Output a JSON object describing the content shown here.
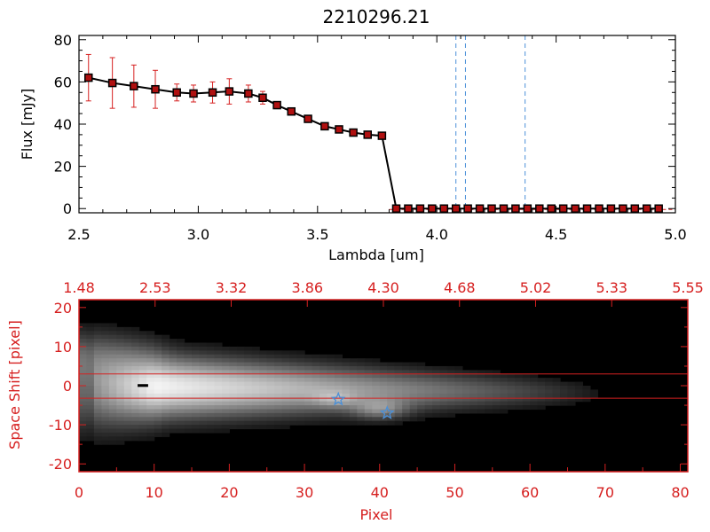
{
  "chart_data": [
    {
      "type": "line",
      "title": "2210296.21",
      "xlabel": "Lambda [um]",
      "ylabel": "Flux [mJy]",
      "xlim": [
        2.5,
        5.0
      ],
      "ylim": [
        -2,
        82
      ],
      "xticks": [
        "2.5",
        "3.0",
        "3.5",
        "4.0",
        "4.5",
        "5.0"
      ],
      "yticks": [
        "0",
        "20",
        "40",
        "60",
        "80"
      ],
      "line_color": "#000000",
      "marker_color": "#b01010",
      "errorbar_color": "#d62020",
      "vline_color": "#4a90d9",
      "vlines": [
        4.08,
        4.12,
        4.37
      ],
      "baseline_color": "#d62020",
      "series": [
        {
          "x": [
            2.54,
            2.64,
            2.73,
            2.82,
            2.91,
            2.98,
            3.06,
            3.13,
            3.21,
            3.27,
            3.33,
            3.39,
            3.46,
            3.53,
            3.59,
            3.65,
            3.71,
            3.77,
            3.83,
            3.88,
            3.93,
            3.98,
            4.03,
            4.08,
            4.13,
            4.18,
            4.23,
            4.28,
            4.33,
            4.38,
            4.43,
            4.48,
            4.53,
            4.58,
            4.63,
            4.68,
            4.73,
            4.78,
            4.83,
            4.88,
            4.93
          ],
          "y": [
            62,
            59.5,
            58,
            56.5,
            55,
            54.5,
            55,
            55.5,
            54.5,
            52.5,
            49,
            46,
            42.5,
            39,
            37.5,
            36,
            35,
            34.5,
            0,
            0,
            0,
            0,
            0,
            0,
            0,
            0,
            0,
            0,
            0,
            0,
            0,
            0,
            0,
            0,
            0,
            0,
            0,
            0,
            0,
            0,
            0
          ],
          "yerr": [
            11,
            12,
            10,
            9,
            4,
            4,
            5,
            6,
            4,
            3,
            0,
            0,
            0,
            0,
            0,
            0,
            0,
            0,
            0,
            0,
            0,
            0,
            0,
            0,
            0,
            0,
            0,
            0,
            0,
            0,
            0,
            0,
            0,
            0,
            0,
            0,
            0,
            0,
            0,
            0,
            0
          ]
        }
      ]
    },
    {
      "type": "heatmap",
      "xlabel": "Pixel",
      "ylabel": "Space Shift [pixel]",
      "xlim": [
        0,
        81
      ],
      "ylim": [
        -22,
        22
      ],
      "xticks": [
        "0",
        "10",
        "20",
        "30",
        "40",
        "50",
        "60",
        "70",
        "80"
      ],
      "yticks": [
        "-20",
        "-10",
        "0",
        "10",
        "20"
      ],
      "top_xticks": [
        "1.48",
        "2.53",
        "3.32",
        "3.86",
        "4.30",
        "4.68",
        "5.02",
        "5.33",
        "5.55"
      ],
      "hlines": [
        3,
        -3.2
      ],
      "hline_color": "#d62020",
      "axis_color": "#d62020",
      "star_color": "#4a90d9",
      "stars": [
        {
          "x": 34.5,
          "y": -3.5
        },
        {
          "x": 41,
          "y": -7
        }
      ],
      "trace": {
        "core_x": [
          8,
          12,
          20,
          30,
          40,
          50,
          60,
          66
        ],
        "core_y": [
          0,
          0,
          0,
          -0.5,
          -1,
          -1.5,
          -1.5,
          -2
        ]
      }
    }
  ]
}
